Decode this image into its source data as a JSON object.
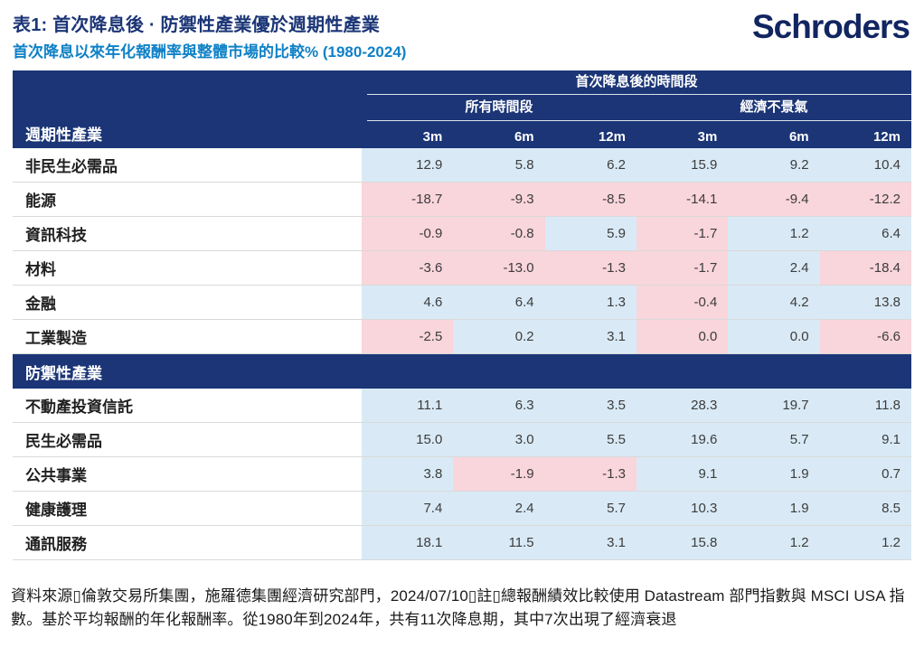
{
  "page": {
    "logo_text": "Schroders"
  },
  "chart_data": {
    "type": "table",
    "title": "表1: 首次降息後 · 防禦性產業優於週期性產業",
    "subtitle": "首次降息以來年化報酬率與整體市場的比較% (1980-2024)",
    "top_header": "首次降息後的時間段",
    "group_headers": [
      "所有時間段",
      "經濟不景氣"
    ],
    "column_headers": [
      "3m",
      "6m",
      "12m",
      "3m",
      "6m",
      "12m"
    ],
    "legend": {
      "positive_cell_color": "#d9eaf6",
      "negative_cell_color": "#f9d5dc",
      "header_navy": "#1b3576"
    },
    "sections": [
      {
        "header": "週期性產業",
        "rows": [
          {
            "label": "非民生必需品",
            "values": [
              "12.9",
              "5.8",
              "6.2",
              "15.9",
              "9.2",
              "10.4"
            ],
            "tones": [
              "pos",
              "pos",
              "pos",
              "pos",
              "pos",
              "pos"
            ]
          },
          {
            "label": "能源",
            "values": [
              "-18.7",
              "-9.3",
              "-8.5",
              "-14.1",
              "-9.4",
              "-12.2"
            ],
            "tones": [
              "neg",
              "neg",
              "neg",
              "neg",
              "neg",
              "neg"
            ]
          },
          {
            "label": "資訊科技",
            "values": [
              "-0.9",
              "-0.8",
              "5.9",
              "-1.7",
              "1.2",
              "6.4"
            ],
            "tones": [
              "neg",
              "neg",
              "pos",
              "neg",
              "pos",
              "pos"
            ]
          },
          {
            "label": "材料",
            "values": [
              "-3.6",
              "-13.0",
              "-1.3",
              "-1.7",
              "2.4",
              "-18.4"
            ],
            "tones": [
              "neg",
              "neg",
              "neg",
              "neg",
              "pos",
              "neg"
            ]
          },
          {
            "label": "金融",
            "values": [
              "4.6",
              "6.4",
              "1.3",
              "-0.4",
              "4.2",
              "13.8"
            ],
            "tones": [
              "pos",
              "pos",
              "pos",
              "neg",
              "pos",
              "pos"
            ]
          },
          {
            "label": "工業製造",
            "values": [
              "-2.5",
              "0.2",
              "3.1",
              "0.0",
              "0.0",
              "-6.6"
            ],
            "tones": [
              "neg",
              "pos",
              "pos",
              "neg",
              "pos",
              "neg"
            ]
          }
        ]
      },
      {
        "header": "防禦性產業",
        "rows": [
          {
            "label": "不動產投資信託",
            "values": [
              "11.1",
              "6.3",
              "3.5",
              "28.3",
              "19.7",
              "11.8"
            ],
            "tones": [
              "pos",
              "pos",
              "pos",
              "pos",
              "pos",
              "pos"
            ]
          },
          {
            "label": "民生必需品",
            "values": [
              "15.0",
              "3.0",
              "5.5",
              "19.6",
              "5.7",
              "9.1"
            ],
            "tones": [
              "pos",
              "pos",
              "pos",
              "pos",
              "pos",
              "pos"
            ]
          },
          {
            "label": "公共事業",
            "values": [
              "3.8",
              "-1.9",
              "-1.3",
              "9.1",
              "1.9",
              "0.7"
            ],
            "tones": [
              "pos",
              "neg",
              "neg",
              "pos",
              "pos",
              "pos"
            ]
          },
          {
            "label": "健康護理",
            "values": [
              "7.4",
              "2.4",
              "5.7",
              "10.3",
              "1.9",
              "8.5"
            ],
            "tones": [
              "pos",
              "pos",
              "pos",
              "pos",
              "pos",
              "pos"
            ]
          },
          {
            "label": "通訊服務",
            "values": [
              "18.1",
              "11.5",
              "3.1",
              "15.8",
              "1.2",
              "1.2"
            ],
            "tones": [
              "pos",
              "pos",
              "pos",
              "pos",
              "pos",
              "pos"
            ]
          }
        ]
      }
    ],
    "source_note": "資料來源▯倫敦交易所集團，施羅德集團經濟研究部門，2024/07/10▯註▯總報酬績效比較使用 Datastream 部門指數與 MSCI USA 指數。基於平均報酬的年化報酬率。從1980年到2024年，共有11次降息期，其中7次出現了經濟衰退"
  }
}
